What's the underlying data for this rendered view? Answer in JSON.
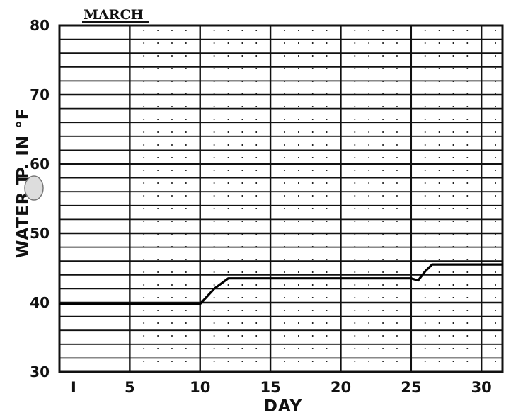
{
  "chart_data": {
    "type": "line",
    "title": "MARCH",
    "xlabel": "DAY",
    "ylabel": "WATER T  P. IN °F",
    "ylabel_parts": [
      "WATER T",
      "P. IN °F"
    ],
    "xlim": [
      0,
      31.5
    ],
    "ylim": [
      30,
      80
    ],
    "x_ticks": [
      1,
      5,
      10,
      15,
      20,
      25,
      30
    ],
    "x_tick_labels": [
      "I",
      "5",
      "10",
      "15",
      "20",
      "25",
      "30"
    ],
    "y_ticks": [
      30,
      40,
      50,
      60,
      70,
      80
    ],
    "y_tick_labels": [
      "30",
      "40",
      "50",
      "60",
      "70",
      "80"
    ],
    "y_tick_labels_shown": [
      "30",
      "40",
      "50",
      "60",
      "70",
      "80"
    ],
    "grid": true,
    "legend": "none",
    "series": [
      {
        "x": [
          0,
          10,
          11,
          12,
          25,
          25.5,
          26,
          26.5,
          31.5
        ],
        "y": [
          39.8,
          39.8,
          42.0,
          43.5,
          43.5,
          43.2,
          44.5,
          45.5,
          45.5
        ]
      }
    ],
    "colors": {
      "line": "#000000",
      "grid": "#111111"
    }
  }
}
